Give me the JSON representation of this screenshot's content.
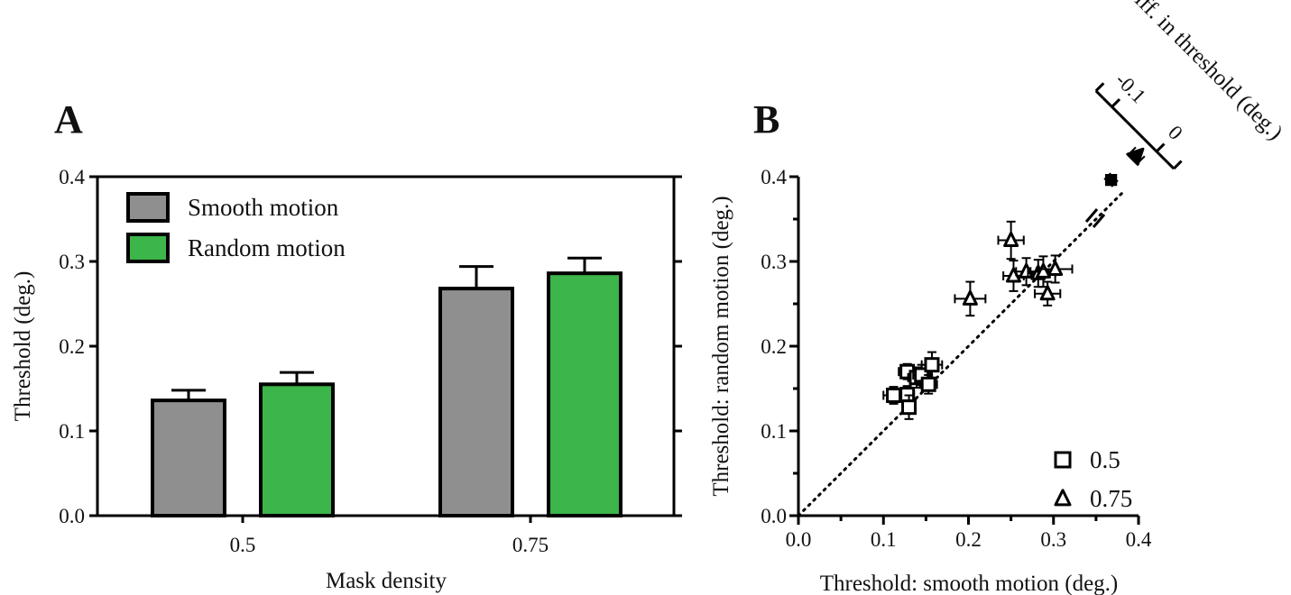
{
  "chart_data": [
    {
      "panel": "A",
      "type": "bar",
      "xlabel": "Mask density",
      "ylabel": "Threshold (deg.)",
      "ylim": [
        0,
        0.4
      ],
      "yticks": [
        "0.0",
        "0.1",
        "0.2",
        "0.3",
        "0.4"
      ],
      "categories": [
        "0.5",
        "0.75"
      ],
      "legend_position": "top-left",
      "grid": false,
      "series": [
        {
          "name": "Smooth motion",
          "color": "#8f8f8f",
          "values": [
            0.136,
            0.268
          ],
          "errors": [
            0.012,
            0.026
          ]
        },
        {
          "name": "Random motion",
          "color": "#3cb54a",
          "values": [
            0.155,
            0.286
          ],
          "errors": [
            0.014,
            0.018
          ]
        }
      ]
    },
    {
      "panel": "B",
      "type": "scatter",
      "xlabel": "Threshold: smooth motion (deg.)",
      "ylabel": "Threshold: random motion (deg.)",
      "xlim": [
        0,
        0.4
      ],
      "ylim": [
        0,
        0.4
      ],
      "xticks": [
        "0.0",
        "0.1",
        "0.2",
        "0.3",
        "0.4"
      ],
      "yticks": [
        "0.0",
        "0.1",
        "0.2",
        "0.3",
        "0.4"
      ],
      "identity_line": true,
      "legend_position": "bottom-right",
      "series": [
        {
          "name": "0.5",
          "marker": "square",
          "points": [
            {
              "x": 0.112,
              "y": 0.142,
              "xerr": 0.012,
              "yerr": 0.01
            },
            {
              "x": 0.128,
              "y": 0.143,
              "xerr": 0.008,
              "yerr": 0.01
            },
            {
              "x": 0.13,
              "y": 0.128,
              "xerr": 0.007,
              "yerr": 0.014
            },
            {
              "x": 0.128,
              "y": 0.17,
              "xerr": 0.01,
              "yerr": 0.009
            },
            {
              "x": 0.139,
              "y": 0.163,
              "xerr": 0.01,
              "yerr": 0.012
            },
            {
              "x": 0.145,
              "y": 0.166,
              "xerr": 0.01,
              "yerr": 0.012
            },
            {
              "x": 0.157,
              "y": 0.178,
              "xerr": 0.012,
              "yerr": 0.015
            },
            {
              "x": 0.153,
              "y": 0.155,
              "xerr": 0.01,
              "yerr": 0.011
            }
          ]
        },
        {
          "name": "0.75",
          "marker": "triangle",
          "points": [
            {
              "x": 0.202,
              "y": 0.256,
              "xerr": 0.018,
              "yerr": 0.02
            },
            {
              "x": 0.25,
              "y": 0.325,
              "xerr": 0.015,
              "yerr": 0.022
            },
            {
              "x": 0.253,
              "y": 0.283,
              "xerr": 0.012,
              "yerr": 0.018
            },
            {
              "x": 0.268,
              "y": 0.288,
              "xerr": 0.012,
              "yerr": 0.016
            },
            {
              "x": 0.282,
              "y": 0.286,
              "xerr": 0.012,
              "yerr": 0.016
            },
            {
              "x": 0.288,
              "y": 0.288,
              "xerr": 0.015,
              "yerr": 0.018
            },
            {
              "x": 0.293,
              "y": 0.262,
              "xerr": 0.015,
              "yerr": 0.014
            },
            {
              "x": 0.302,
              "y": 0.291,
              "xerr": 0.02,
              "yerr": 0.016
            }
          ]
        }
      ],
      "difference_axis": {
        "label": "Diff. in threshold (deg.)",
        "ticks": [
          "-0.1",
          "0"
        ],
        "means": [
          {
            "name": "0.5",
            "marker": "diamond",
            "value": -0.019,
            "ci": 0.008
          },
          {
            "name": "0.75",
            "marker": "triangle",
            "value": -0.018,
            "ci": 0.01
          }
        ]
      }
    }
  ],
  "labels": {
    "panel_a": "A",
    "panel_b": "B"
  }
}
